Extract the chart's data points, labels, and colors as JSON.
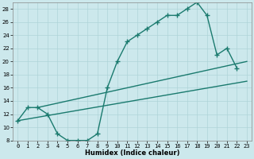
{
  "line1_x": [
    0,
    1,
    2,
    3,
    4,
    5,
    6,
    7,
    8,
    9,
    10,
    11,
    12,
    13,
    14,
    15,
    16,
    17,
    18,
    19,
    20,
    21,
    22
  ],
  "line1_y": [
    11,
    13,
    13,
    12,
    9,
    8,
    8,
    8,
    9,
    16,
    20,
    23,
    24,
    25,
    26,
    27,
    27,
    28,
    29,
    27,
    21,
    22,
    19
  ],
  "line2_x": [
    0,
    23
  ],
  "line2_y": [
    11,
    17
  ],
  "line3_x": [
    2,
    23
  ],
  "line3_y": [
    13,
    20
  ],
  "line_color": "#1a7a6e",
  "bg_color": "#cce8ec",
  "grid_color": "#afd4d8",
  "xlabel": "Humidex (Indice chaleur)",
  "ylim": [
    8,
    29
  ],
  "xlim": [
    -0.5,
    23.5
  ],
  "yticks": [
    8,
    10,
    12,
    14,
    16,
    18,
    20,
    22,
    24,
    26,
    28
  ],
  "xticks": [
    0,
    1,
    2,
    3,
    4,
    5,
    6,
    7,
    8,
    9,
    10,
    11,
    12,
    13,
    14,
    15,
    16,
    17,
    18,
    19,
    20,
    21,
    22,
    23
  ],
  "marker": "+",
  "markersize": 4,
  "linewidth": 1.0,
  "xlabel_fontsize": 6.0,
  "tick_fontsize": 5.0
}
